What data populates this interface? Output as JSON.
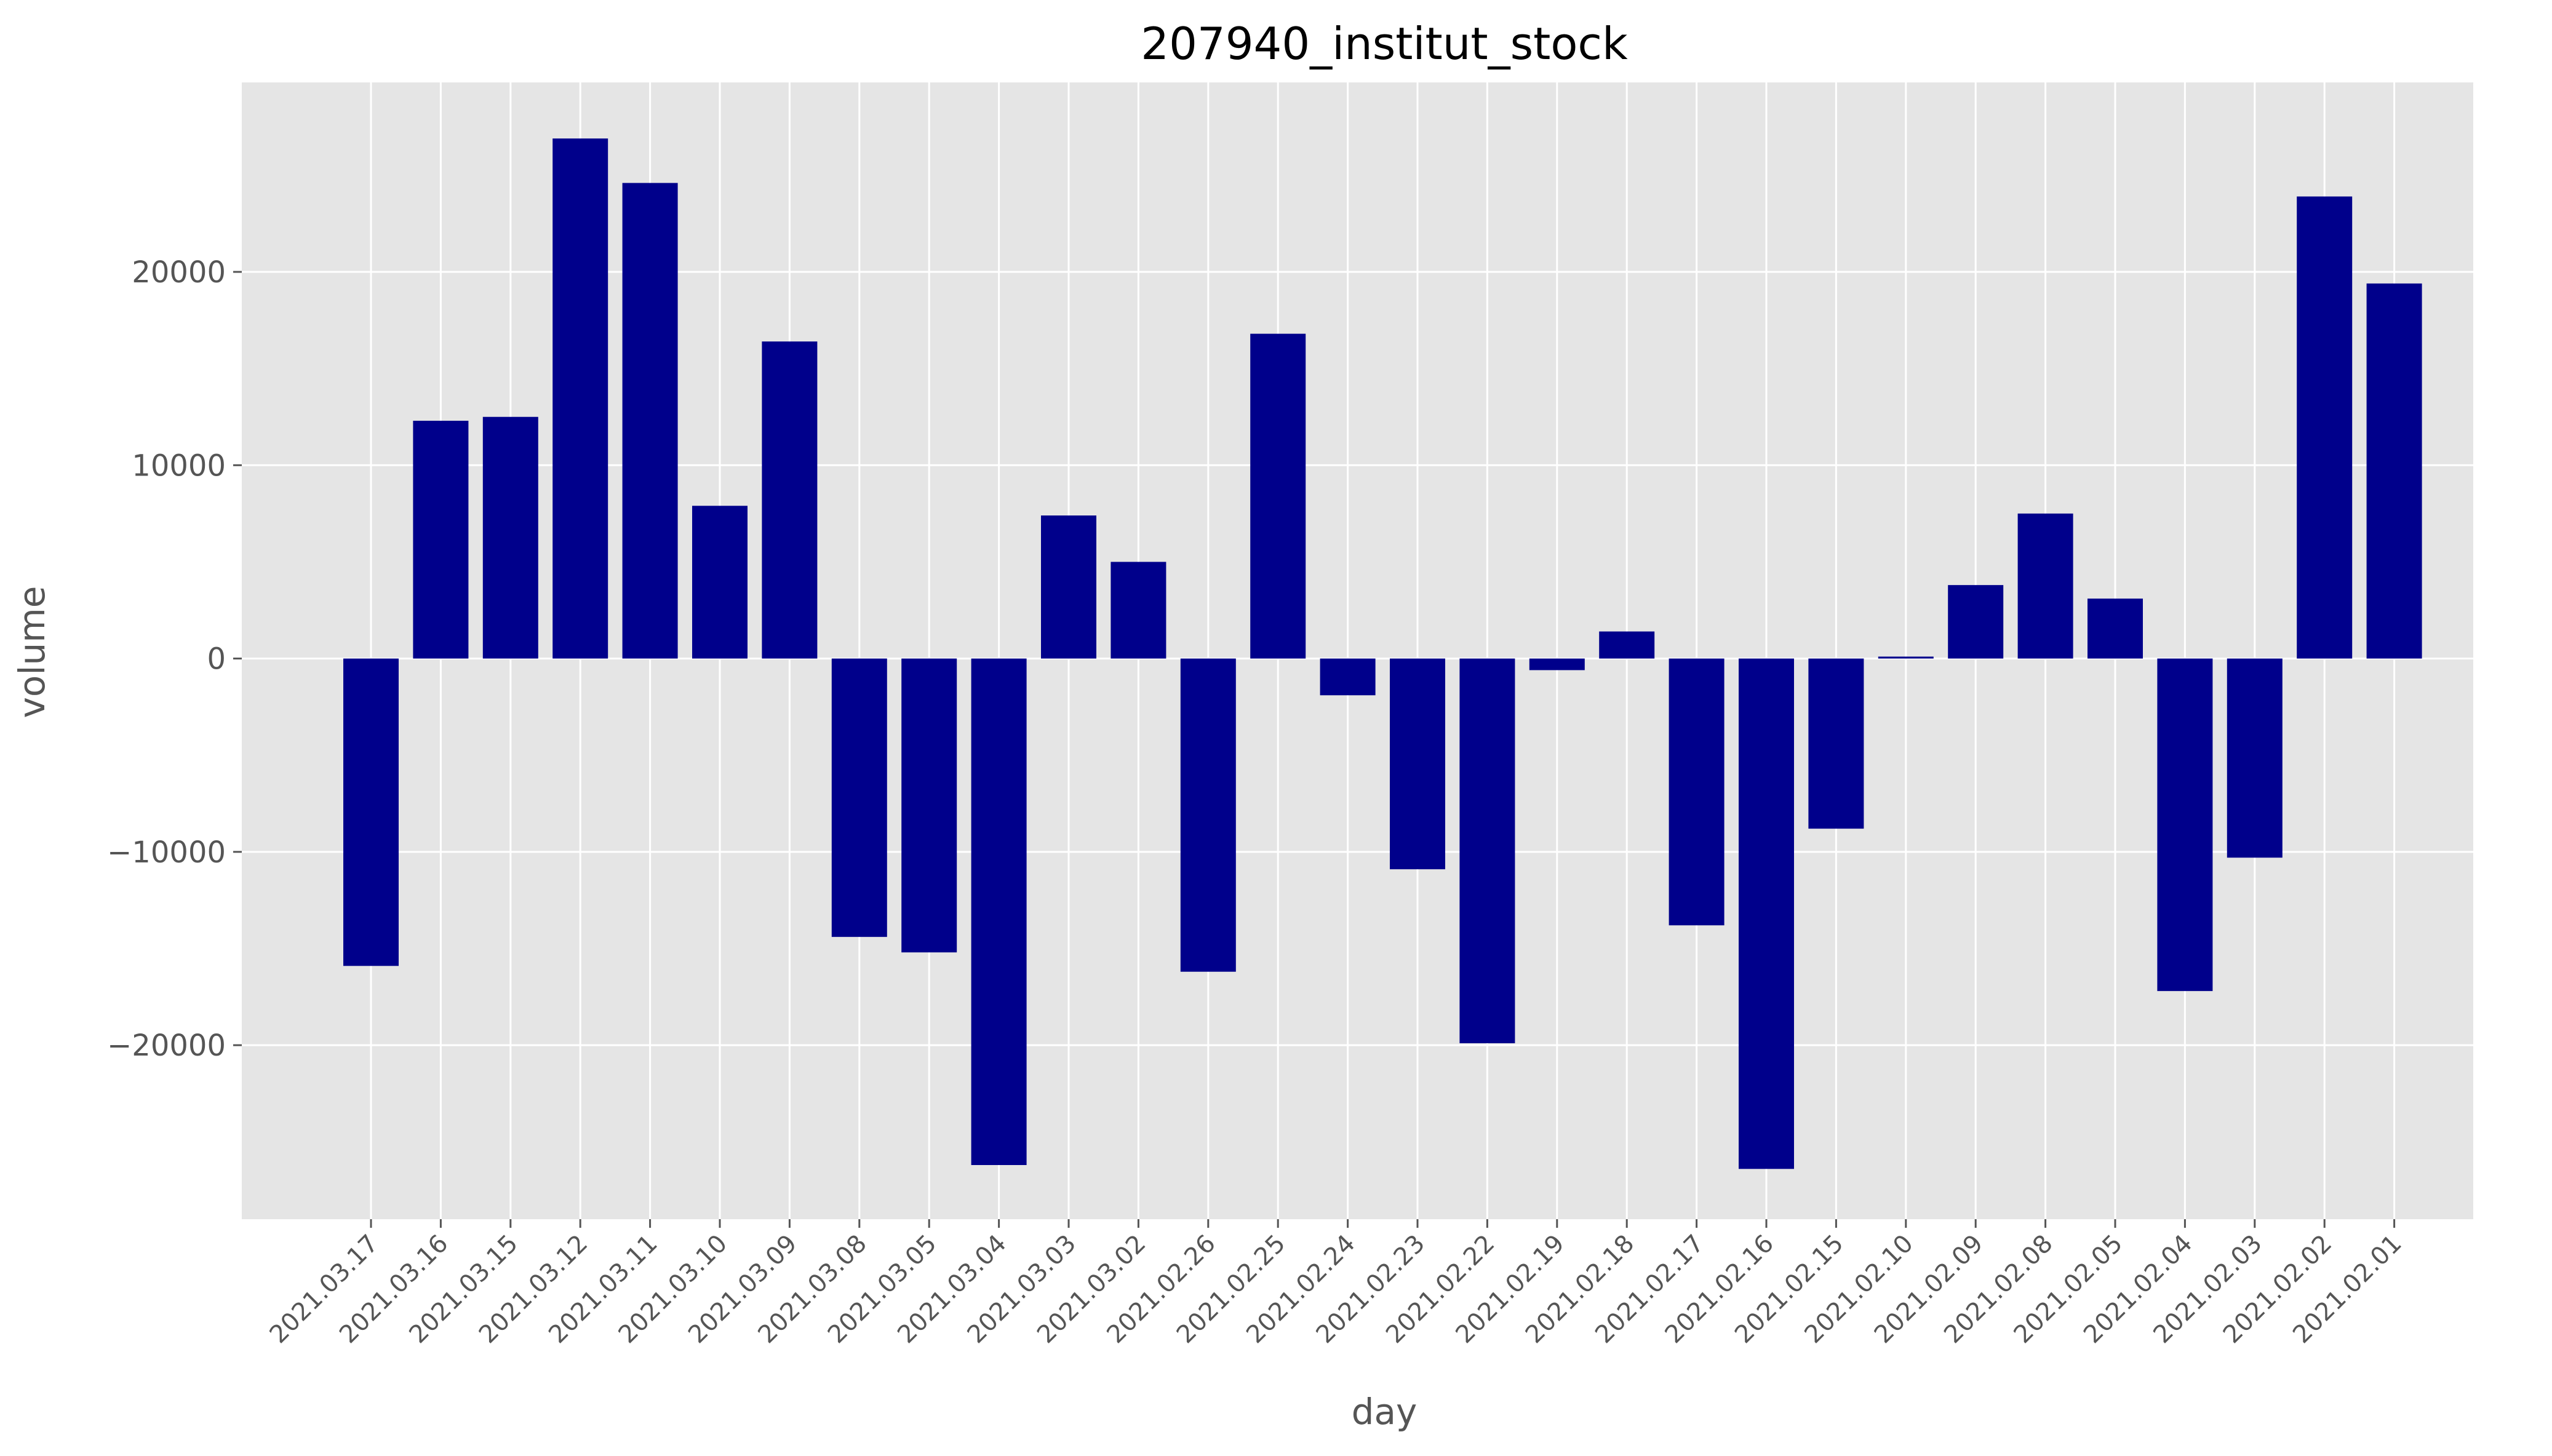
{
  "chart_data": {
    "type": "bar",
    "title": "207940_institut_stock",
    "xlabel": "day",
    "ylabel": "volume",
    "categories": [
      "2021.03.17",
      "2021.03.16",
      "2021.03.15",
      "2021.03.12",
      "2021.03.11",
      "2021.03.10",
      "2021.03.09",
      "2021.03.08",
      "2021.03.05",
      "2021.03.04",
      "2021.03.03",
      "2021.03.02",
      "2021.02.26",
      "2021.02.25",
      "2021.02.24",
      "2021.02.23",
      "2021.02.22",
      "2021.02.19",
      "2021.02.18",
      "2021.02.17",
      "2021.02.16",
      "2021.02.15",
      "2021.02.10",
      "2021.02.09",
      "2021.02.08",
      "2021.02.05",
      "2021.02.04",
      "2021.02.03",
      "2021.02.02",
      "2021.02.01"
    ],
    "values": [
      -15900,
      12300,
      12500,
      26900,
      24600,
      7900,
      16400,
      -14400,
      -15200,
      -26200,
      7400,
      5000,
      -16200,
      16800,
      -1900,
      -10900,
      -19900,
      -600,
      1400,
      -13800,
      -26400,
      -8800,
      100,
      3800,
      7500,
      3100,
      -17200,
      -10300,
      23900,
      19400
    ],
    "yticks": [
      -20000,
      -10000,
      0,
      10000,
      20000
    ],
    "ylim": [
      -29000,
      29800
    ],
    "grid": true,
    "colors": {
      "bar": "#00008b",
      "plot_background": "#e5e5e5",
      "grid": "#ffffff"
    }
  }
}
